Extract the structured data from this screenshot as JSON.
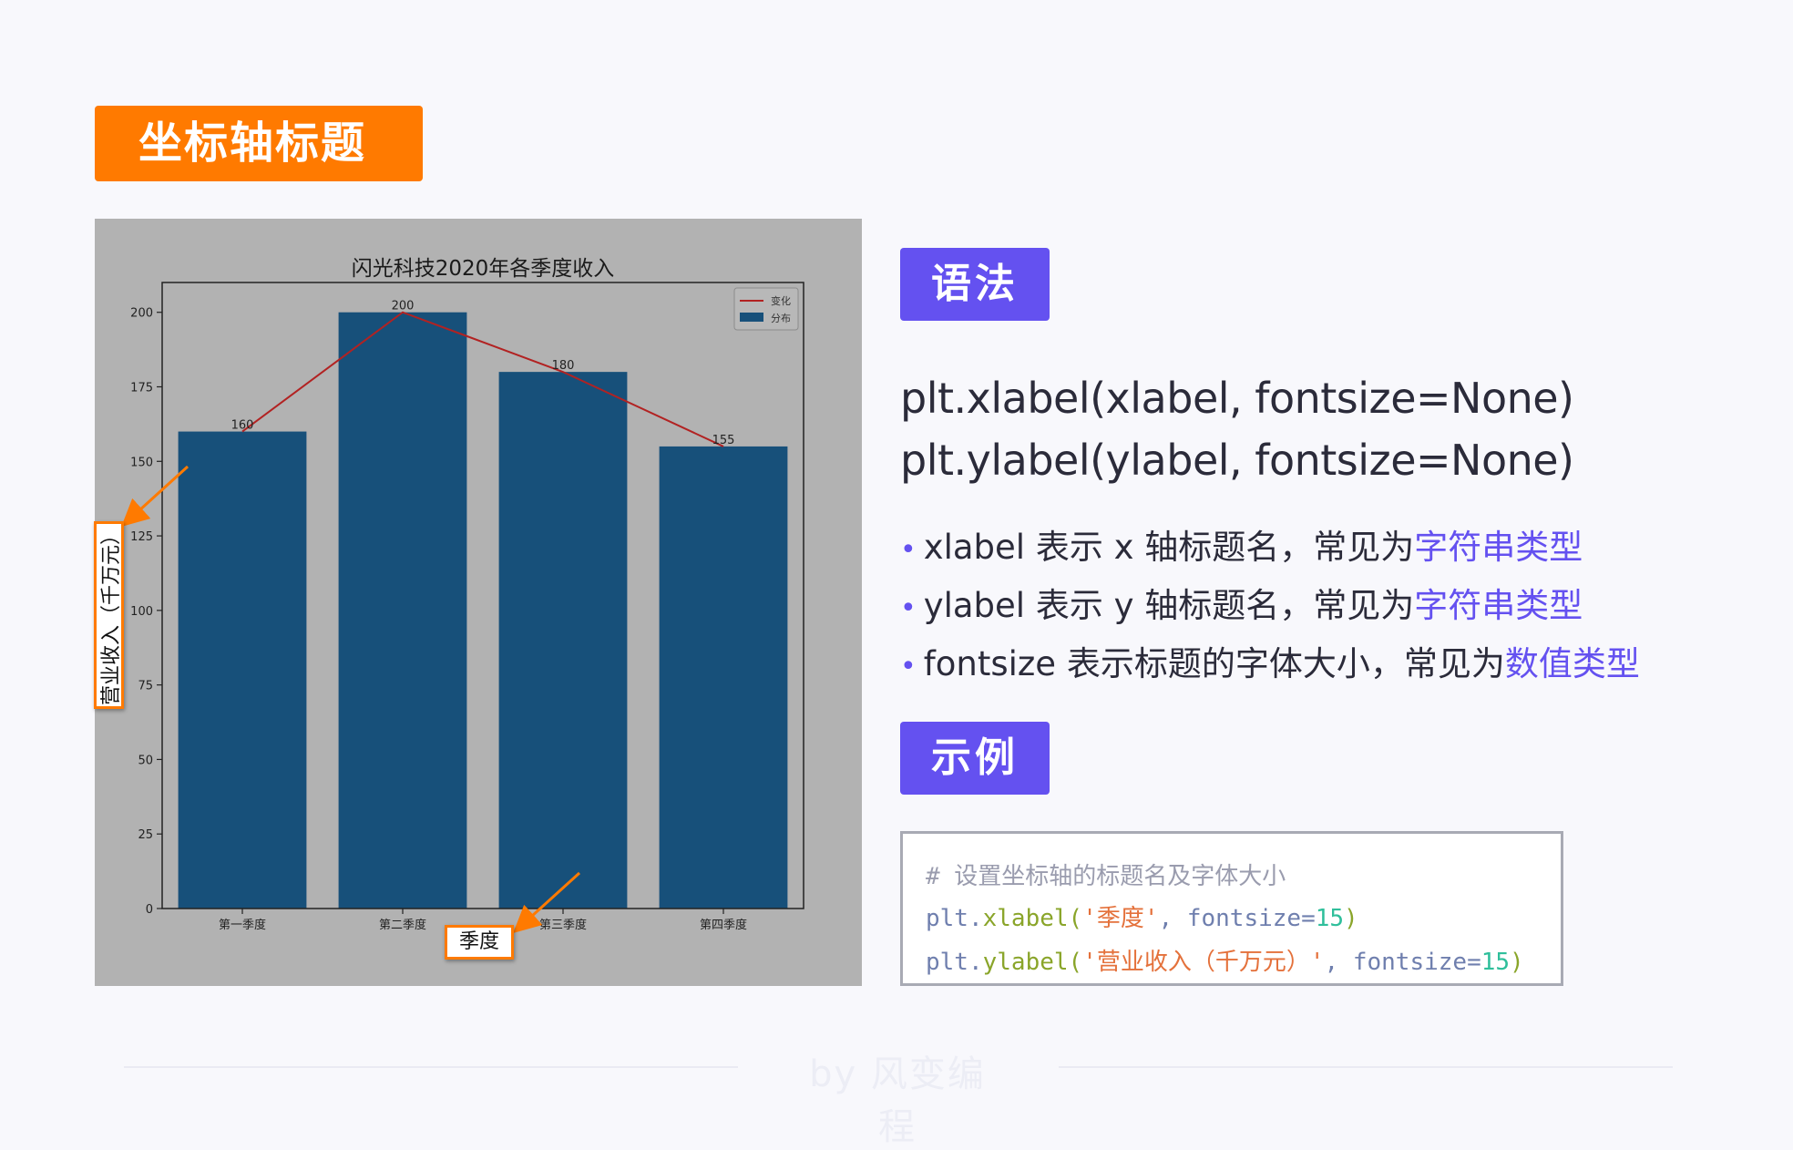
{
  "slide_title": "坐标轴标题",
  "chart_data": {
    "type": "bar",
    "title": "闪光科技2020年各季度收入",
    "categories": [
      "第一季度",
      "第二季度",
      "第三季度",
      "第四季度"
    ],
    "series": [
      {
        "name": "分布",
        "type": "bar",
        "values": [
          160,
          200,
          180,
          155
        ],
        "color": "#17507a"
      },
      {
        "name": "变化",
        "type": "line",
        "values": [
          160,
          200,
          180,
          155
        ],
        "color": "#b22222"
      }
    ],
    "data_labels": [
      "160",
      "200",
      "180",
      "155"
    ],
    "xlabel": "季度",
    "ylabel": "营业收入（千万元）",
    "ylim": [
      0,
      210
    ],
    "yticks": [
      0,
      25,
      50,
      75,
      100,
      125,
      150,
      175,
      200
    ],
    "legend": {
      "placement": "top-right",
      "entries": [
        "变化",
        "分布"
      ]
    },
    "grid": false,
    "background": "#b2b2b2"
  },
  "syntax": {
    "badge": "语法",
    "lines": [
      "plt.xlabel(xlabel, fontsize=None)",
      "plt.ylabel(ylabel, fontsize=None)"
    ],
    "bullets": [
      {
        "text": "xlabel 表示 x 轴标题名，常见为",
        "highlight": "字符串类型"
      },
      {
        "text": "ylabel 表示 y 轴标题名，常见为",
        "highlight": "字符串类型"
      },
      {
        "text": "fontsize 表示标题的字体大小，常见为",
        "highlight": "数值类型"
      }
    ]
  },
  "example": {
    "badge": "示例",
    "comment": "# 设置坐标轴的标题名及字体大小",
    "line1": {
      "obj": "plt.",
      "fn": "xlabel",
      "open": "(",
      "str": "'季度'",
      "sep": ", ",
      "kw": "fontsize",
      "eq": "=",
      "num": "15",
      "close": ")"
    },
    "line2": {
      "obj": "plt.",
      "fn": "ylabel",
      "open": "(",
      "str": "'营业收入（千万元）'",
      "sep": ", ",
      "kw": "fontsize",
      "eq": "=",
      "num": "15",
      "close": ")"
    }
  },
  "footer": "by 风变编程",
  "colors": {
    "accent_orange": "#ff7a00",
    "accent_purple": "#6451f0"
  }
}
